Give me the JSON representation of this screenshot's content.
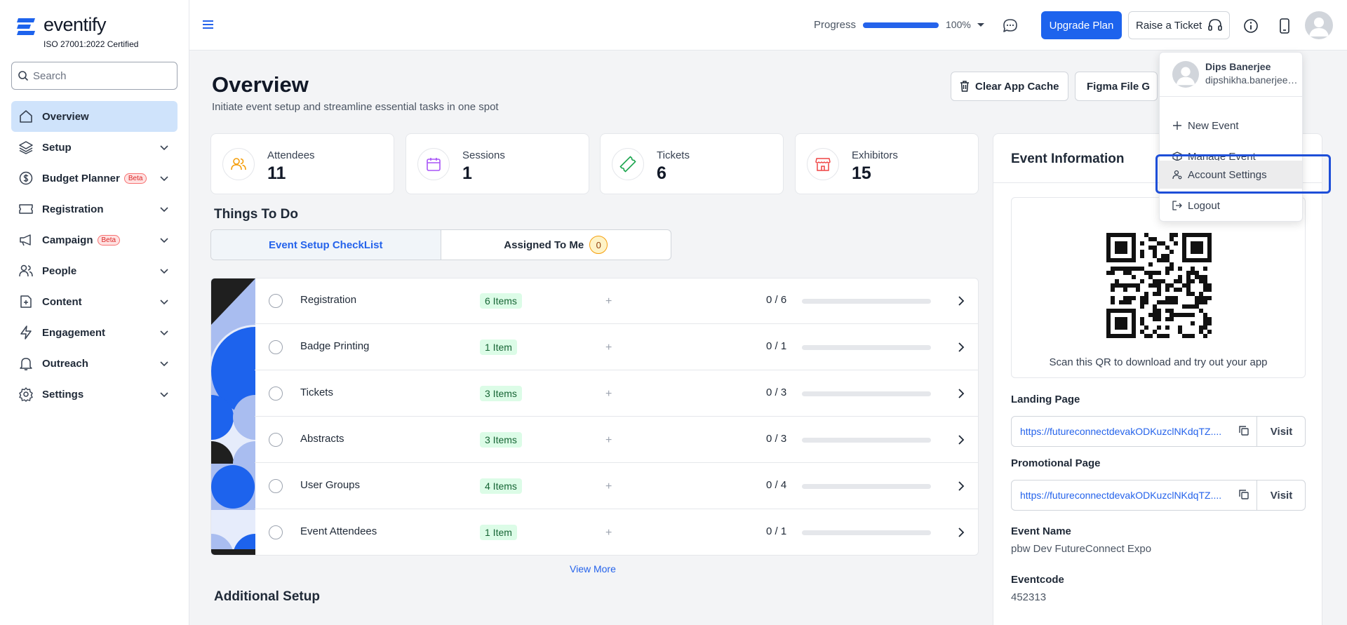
{
  "brand": {
    "name": "eventify",
    "certification": "ISO 27001:2022 Certified",
    "accent": "#1d63ed"
  },
  "search": {
    "placeholder": "Search",
    "icon": "search-icon"
  },
  "sidebar": {
    "items": [
      {
        "label": "Overview",
        "icon": "home-icon",
        "active": true
      },
      {
        "label": "Setup",
        "icon": "layers-icon",
        "badge": ""
      },
      {
        "label": "Budget Planner",
        "icon": "dollar-icon",
        "badge": "Beta"
      },
      {
        "label": "Registration",
        "icon": "ticket-icon",
        "badge": ""
      },
      {
        "label": "Campaign",
        "icon": "megaphone-icon",
        "badge": "Beta"
      },
      {
        "label": "People",
        "icon": "users-icon",
        "badge": ""
      },
      {
        "label": "Content",
        "icon": "file-plus-icon",
        "badge": ""
      },
      {
        "label": "Engagement",
        "icon": "zap-icon",
        "badge": ""
      },
      {
        "label": "Outreach",
        "icon": "bell-icon",
        "badge": ""
      },
      {
        "label": "Settings",
        "icon": "gear-icon",
        "badge": ""
      }
    ]
  },
  "header": {
    "progress_label": "Progress",
    "progress_value": "100%",
    "progress_fraction": 1.0,
    "upgrade_label": "Upgrade Plan",
    "ticket_label": "Raise a Ticket"
  },
  "overview": {
    "title": "Overview",
    "subtitle": "Initiate event setup and streamline essential tasks in one spot",
    "clear_cache_label": "Clear App Cache",
    "figma_label": "Figma File G"
  },
  "stats": [
    {
      "label": "Attendees",
      "value": "11",
      "icon": "users-icon",
      "color": "#f59e0b"
    },
    {
      "label": "Sessions",
      "value": "1",
      "icon": "calendar-icon",
      "color": "#a855f7"
    },
    {
      "label": "Tickets",
      "value": "6",
      "icon": "ticket-icon",
      "color": "#16a34a"
    },
    {
      "label": "Exhibitors",
      "value": "15",
      "icon": "store-icon",
      "color": "#ef4444"
    }
  ],
  "todo": {
    "title": "Things To Do",
    "tab_checklist": "Event Setup CheckList",
    "tab_assigned": "Assigned To Me",
    "assigned_count": "0",
    "rows": [
      {
        "name": "Registration",
        "items": "6 Items",
        "progress": "0 / 6"
      },
      {
        "name": "Badge Printing",
        "items": "1 Item",
        "progress": "0 / 1"
      },
      {
        "name": "Tickets",
        "items": "3 Items",
        "progress": "0 / 3"
      },
      {
        "name": "Abstracts",
        "items": "3 Items",
        "progress": "0 / 3"
      },
      {
        "name": "User Groups",
        "items": "4 Items",
        "progress": "0 / 4"
      },
      {
        "name": "Event Attendees",
        "items": "1 Item",
        "progress": "0 / 1"
      }
    ],
    "view_more": "View More"
  },
  "additional": {
    "title": "Additional Setup"
  },
  "event_info": {
    "title": "Event Information",
    "qr_caption": "Scan this QR to download and try out your app",
    "landing_label": "Landing Page",
    "landing_url": "https://futureconnectdevakODKuzclNKdqTZ....",
    "promo_label": "Promotional Page",
    "promo_url": "https://futureconnectdevakODKuzclNKdqTZ....",
    "visit_label": "Visit",
    "name_label": "Event Name",
    "name_value": "pbw Dev FutureConnect Expo",
    "code_label": "Eventcode",
    "code_value": "452313"
  },
  "user_menu": {
    "name": "Dips Banerjee",
    "email": "dipshikha.banerjee@t...",
    "items": [
      {
        "label": "New Event",
        "icon": "plus-icon"
      },
      {
        "label": "Manage Event",
        "icon": "box-icon"
      },
      {
        "label": "Account Settings",
        "icon": "user-gear-icon",
        "highlighted": true
      },
      {
        "label": "Logout",
        "icon": "logout-icon"
      }
    ]
  }
}
